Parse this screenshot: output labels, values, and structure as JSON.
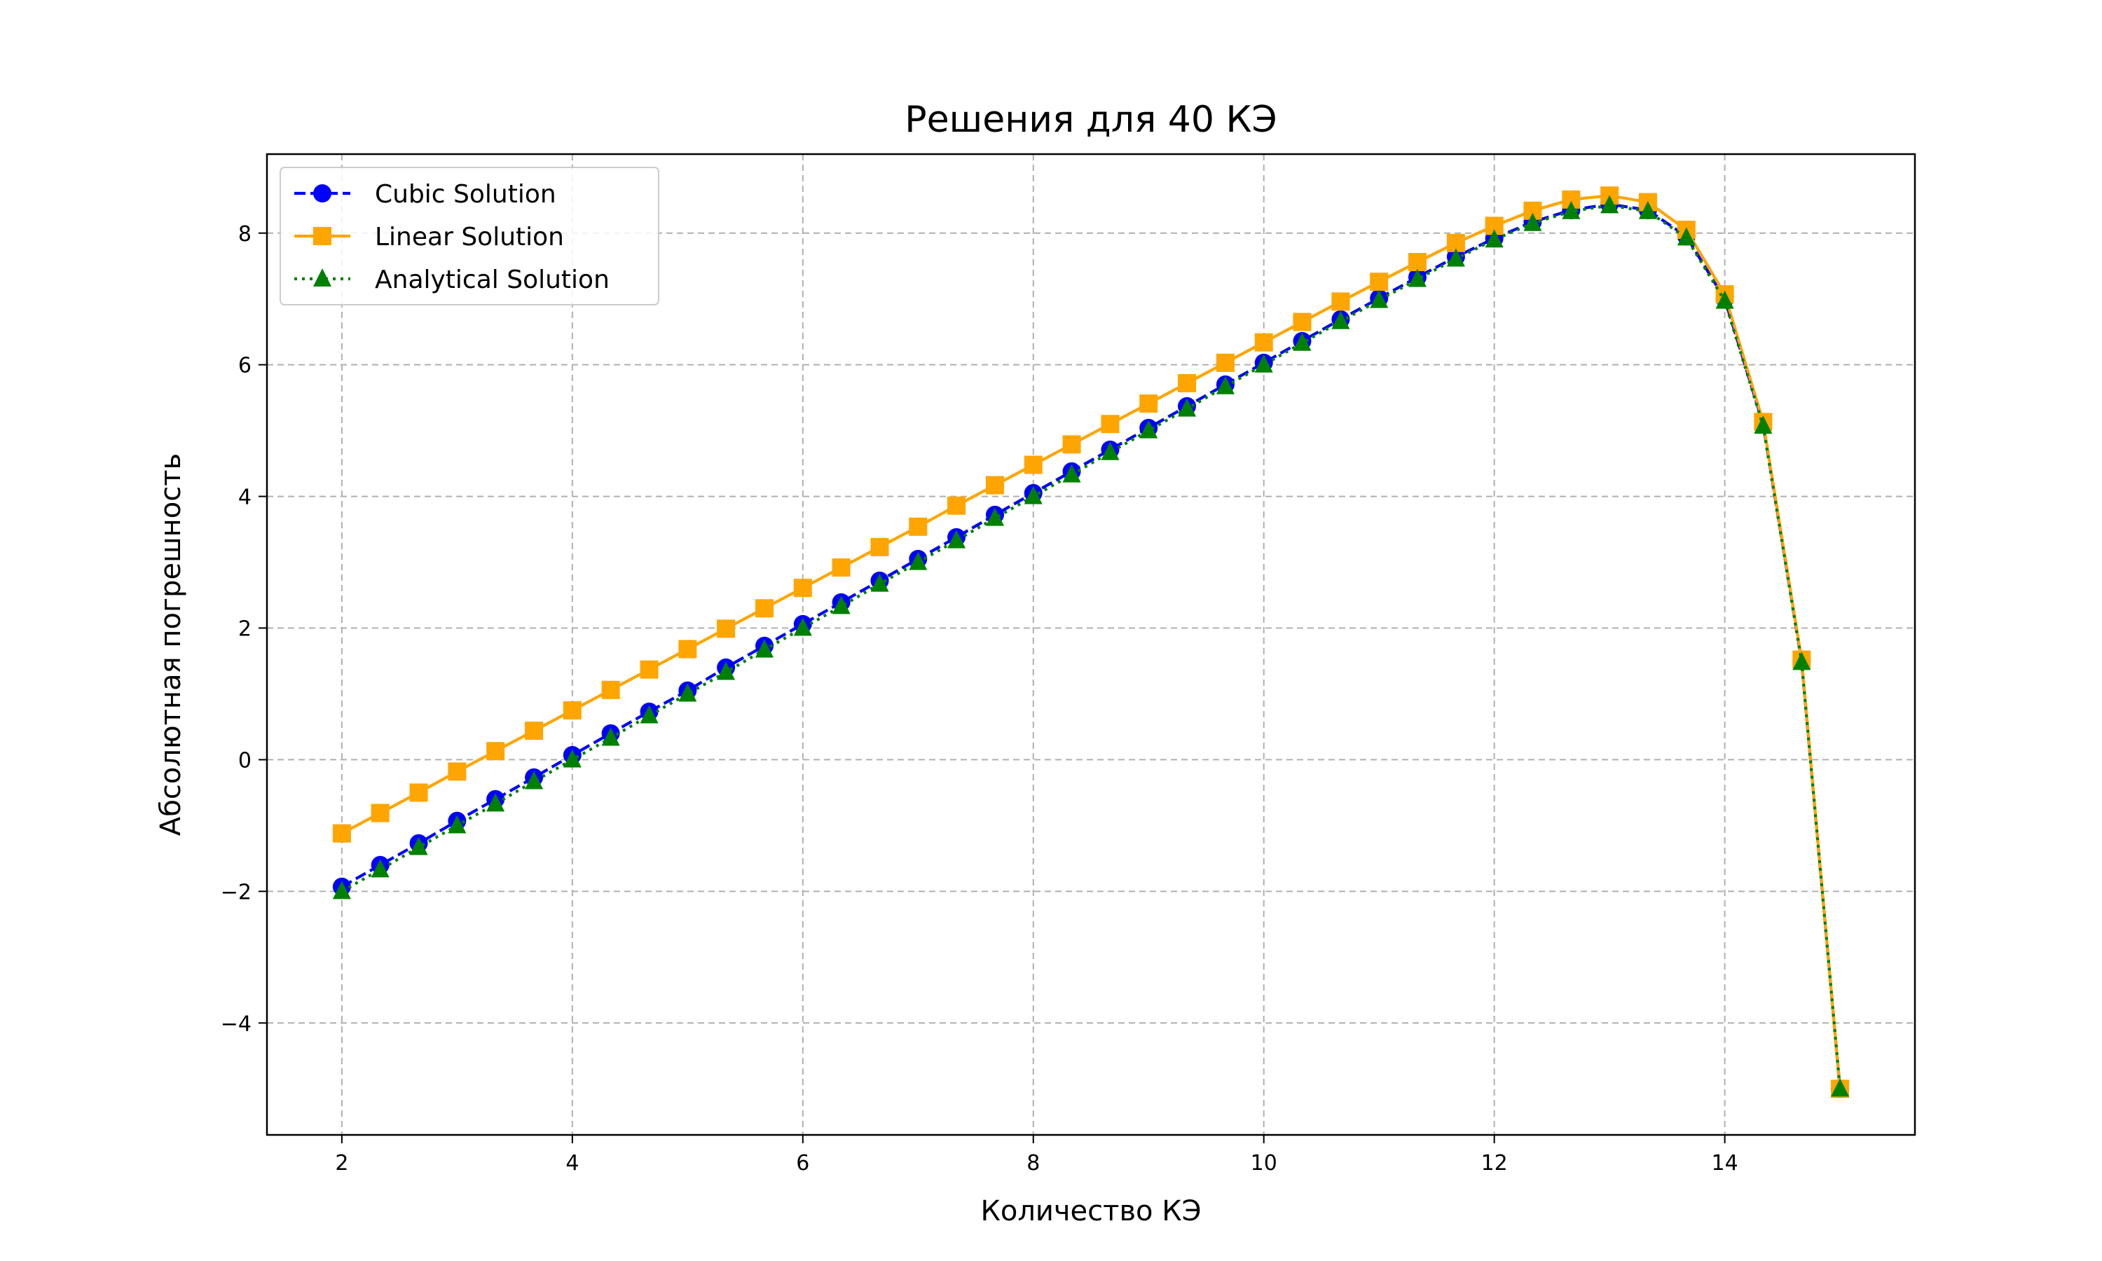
{
  "chart_data": {
    "type": "line",
    "title": "Решения для 40 КЭ",
    "xlabel": "Количество КЭ",
    "ylabel": "Абсолютная погрешность",
    "xlim": [
      1.35,
      15.65
    ],
    "ylim": [
      -5.7,
      9.2
    ],
    "xticks": [
      2,
      4,
      6,
      8,
      10,
      12,
      14
    ],
    "yticks": [
      -4,
      -2,
      0,
      2,
      4,
      6,
      8
    ],
    "grid": true,
    "legend_position": "top-left",
    "x": [
      2.0,
      2.333,
      2.667,
      3.0,
      3.333,
      3.667,
      4.0,
      4.333,
      4.667,
      5.0,
      5.333,
      5.667,
      6.0,
      6.333,
      6.667,
      7.0,
      7.333,
      7.667,
      8.0,
      8.333,
      8.667,
      9.0,
      9.333,
      9.667,
      10.0,
      10.333,
      10.667,
      11.0,
      11.333,
      11.667,
      12.0,
      12.333,
      12.667,
      13.0,
      13.333,
      13.667,
      14.0,
      14.333,
      14.667,
      15.0
    ],
    "series": [
      {
        "name": "Cubic Solution",
        "color": "#0000ff",
        "line_style": "dashed",
        "marker": "circle",
        "values": [
          -1.93,
          -1.6,
          -1.27,
          -0.93,
          -0.6,
          -0.27,
          0.07,
          0.4,
          0.73,
          1.05,
          1.4,
          1.73,
          2.06,
          2.39,
          2.72,
          3.05,
          3.38,
          3.72,
          4.05,
          4.38,
          4.71,
          5.04,
          5.37,
          5.7,
          6.03,
          6.36,
          6.69,
          7.01,
          7.33,
          7.64,
          7.92,
          8.17,
          8.35,
          8.44,
          8.35,
          7.95,
          7.0,
          5.1,
          1.5,
          -5.0
        ]
      },
      {
        "name": "Linear Solution",
        "color": "#ffa500",
        "line_style": "solid",
        "marker": "square",
        "values": [
          -1.12,
          -0.81,
          -0.5,
          -0.18,
          0.13,
          0.44,
          0.75,
          1.06,
          1.37,
          1.68,
          1.99,
          2.3,
          2.61,
          2.92,
          3.23,
          3.54,
          3.86,
          4.17,
          4.48,
          4.79,
          5.1,
          5.41,
          5.72,
          6.03,
          6.34,
          6.65,
          6.96,
          7.26,
          7.56,
          7.85,
          8.11,
          8.34,
          8.51,
          8.57,
          8.47,
          8.05,
          7.07,
          5.13,
          1.52,
          -5.0
        ]
      },
      {
        "name": "Analytical Solution",
        "color": "#008000",
        "line_style": "dotted",
        "marker": "triangle",
        "values": [
          -2.0,
          -1.67,
          -1.33,
          -1.0,
          -0.67,
          -0.33,
          0.0,
          0.33,
          0.67,
          1.0,
          1.33,
          1.67,
          2.0,
          2.33,
          2.67,
          3.0,
          3.33,
          3.67,
          4.0,
          4.33,
          4.67,
          5.0,
          5.33,
          5.67,
          6.0,
          6.33,
          6.66,
          6.98,
          7.3,
          7.61,
          7.9,
          8.15,
          8.33,
          8.42,
          8.33,
          7.93,
          6.97,
          5.07,
          1.48,
          -5.0
        ]
      }
    ]
  }
}
